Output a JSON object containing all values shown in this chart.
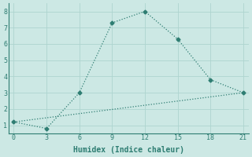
{
  "line1_x": [
    0,
    3,
    6,
    9,
    12,
    15,
    18,
    21
  ],
  "line1_y": [
    1.2,
    0.8,
    3.0,
    7.3,
    8.0,
    6.3,
    3.8,
    3.0
  ],
  "line2_x": [
    0,
    21
  ],
  "line2_y": [
    1.2,
    3.0
  ],
  "line_color": "#2e7d72",
  "bg_color": "#cce8e4",
  "grid_color": "#aed4cf",
  "xlabel": "Humidex (Indice chaleur)",
  "xlim": [
    -0.5,
    21.5
  ],
  "ylim": [
    0.5,
    8.5
  ],
  "xticks": [
    0,
    3,
    6,
    9,
    12,
    15,
    18,
    21
  ],
  "yticks": [
    1,
    2,
    3,
    4,
    5,
    6,
    7,
    8
  ],
  "font_size": 7,
  "marker": "D",
  "marker_size": 2.5,
  "line_width": 0.9
}
